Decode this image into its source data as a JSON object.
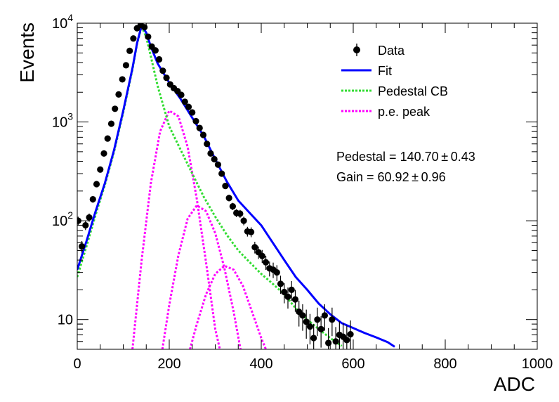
{
  "chart_data": {
    "type": "scatter",
    "xlabel": "ADC",
    "ylabel": "Events",
    "xlim": [
      0,
      1000
    ],
    "ylim": [
      5,
      10000
    ],
    "yscale": "log",
    "grid": false,
    "legend_position": "top-right",
    "x_tick_labels": [
      "0",
      "200",
      "400",
      "600",
      "800",
      "1000"
    ],
    "x_tick_values": [
      0,
      200,
      400,
      600,
      800,
      1000
    ],
    "y_tick_labels": [
      {
        "value": 10,
        "base": "10",
        "exp": ""
      },
      {
        "value": 100,
        "base": "10",
        "exp": "2"
      },
      {
        "value": 1000,
        "base": "10",
        "exp": "3"
      },
      {
        "value": 10000,
        "base": "10",
        "exp": "4"
      }
    ],
    "legend": [
      {
        "label": "Data",
        "style": "marker",
        "color": "#000000"
      },
      {
        "label": "Fit",
        "style": "solid",
        "color": "#0000ff"
      },
      {
        "label": "Pedestal CB",
        "style": "dotted",
        "color": "#33dd33"
      },
      {
        "label": "p.e. peak",
        "style": "dotted",
        "color": "#ff00ff"
      }
    ],
    "annotations": [
      "Pedestal = 140.70 ± 0.43",
      "Gain = 60.92 ± 0.96"
    ],
    "colors": {
      "data": "#000000",
      "fit": "#0000ff",
      "pedestal": "#33dd33",
      "pe": "#ff00ff"
    },
    "series": [
      {
        "name": "Data",
        "style": "points",
        "points": [
          [
            2,
            100
          ],
          [
            10,
            55
          ],
          [
            18,
            90
          ],
          [
            26,
            108
          ],
          [
            34,
            165
          ],
          [
            42,
            235
          ],
          [
            50,
            330
          ],
          [
            58,
            480
          ],
          [
            66,
            680
          ],
          [
            74,
            960
          ],
          [
            82,
            1360
          ],
          [
            90,
            1900
          ],
          [
            98,
            2700
          ],
          [
            106,
            3750
          ],
          [
            114,
            5250
          ],
          [
            122,
            7000
          ],
          [
            130,
            8900
          ],
          [
            138,
            9600
          ],
          [
            146,
            9100
          ],
          [
            154,
            7300
          ],
          [
            162,
            5800
          ],
          [
            170,
            5300
          ],
          [
            178,
            4300
          ],
          [
            186,
            3300
          ],
          [
            194,
            2800
          ],
          [
            202,
            2400
          ],
          [
            210,
            2200
          ],
          [
            218,
            2050
          ],
          [
            226,
            1880
          ],
          [
            234,
            1600
          ],
          [
            242,
            1420
          ],
          [
            250,
            1250
          ],
          [
            258,
            1020
          ],
          [
            266,
            870
          ],
          [
            274,
            740
          ],
          [
            282,
            600
          ],
          [
            290,
            480
          ],
          [
            298,
            420
          ],
          [
            306,
            370
          ],
          [
            314,
            300
          ],
          [
            322,
            225
          ],
          [
            330,
            170
          ],
          [
            338,
            140
          ],
          [
            346,
            120
          ],
          [
            354,
            118
          ],
          [
            362,
            100
          ],
          [
            370,
            78
          ],
          [
            378,
            77
          ],
          [
            386,
            54
          ],
          [
            394,
            48
          ],
          [
            402,
            44
          ],
          [
            410,
            38
          ],
          [
            418,
            33
          ],
          [
            426,
            32
          ],
          [
            434,
            30
          ],
          [
            442,
            23
          ],
          [
            450,
            19
          ],
          [
            458,
            17
          ],
          [
            466,
            20
          ],
          [
            474,
            16
          ],
          [
            482,
            12
          ],
          [
            490,
            11
          ],
          [
            498,
            9.5
          ],
          [
            506,
            8.5
          ],
          [
            514,
            6.5
          ],
          [
            522,
            10
          ],
          [
            530,
            8
          ],
          [
            538,
            11
          ],
          [
            546,
            5.8
          ],
          [
            554,
            10
          ],
          [
            562,
            6
          ],
          [
            570,
            7
          ],
          [
            578,
            6.7
          ],
          [
            586,
            6.2
          ],
          [
            594,
            7.1
          ]
        ],
        "errors": [
          10,
          7.4,
          9.5,
          10.4,
          12.8,
          15.3,
          18.2,
          21.9,
          26,
          31,
          36.9,
          43.6,
          52,
          61.2,
          72.5,
          83.7,
          94.3,
          98,
          95.4,
          85.4,
          76.2,
          72.8,
          65.6,
          57.4,
          52.9,
          49,
          46.9,
          45.3,
          43.4,
          40,
          37.7,
          35.4,
          31.9,
          29.5,
          27.2,
          24.5,
          21.9,
          20.5,
          19.2,
          17.3,
          15,
          13,
          11.8,
          11,
          10.9,
          10,
          8.8,
          8.8,
          7.3,
          6.9,
          6.6,
          6.2,
          5.7,
          5.7,
          5.5,
          4.8,
          4.4,
          4.1,
          4.5,
          4,
          3.5,
          3.3,
          3.1,
          2.9,
          2.5,
          3.2,
          2.8,
          3.3,
          2.4,
          3.2,
          2.4,
          2.6,
          2.6,
          2.5,
          2.7
        ]
      },
      {
        "name": "Fit",
        "style": "line",
        "points": [
          [
            0,
            32
          ],
          [
            20,
            62
          ],
          [
            40,
            125
          ],
          [
            60,
            240
          ],
          [
            80,
            520
          ],
          [
            100,
            1300
          ],
          [
            120,
            3500
          ],
          [
            130,
            6300
          ],
          [
            140,
            9500
          ],
          [
            150,
            8000
          ],
          [
            160,
            5800
          ],
          [
            175,
            3900
          ],
          [
            200,
            2500
          ],
          [
            225,
            1700
          ],
          [
            250,
            1100
          ],
          [
            275,
            720
          ],
          [
            300,
            420
          ],
          [
            325,
            250
          ],
          [
            350,
            160
          ],
          [
            375,
            120
          ],
          [
            400,
            90
          ],
          [
            425,
            60
          ],
          [
            450,
            40
          ],
          [
            475,
            27
          ],
          [
            500,
            20
          ],
          [
            525,
            14.5
          ],
          [
            550,
            11.3
          ],
          [
            575,
            9.2
          ],
          [
            600,
            8.2
          ],
          [
            625,
            7.3
          ],
          [
            650,
            6.6
          ],
          [
            675,
            5.9
          ],
          [
            690,
            5.3
          ]
        ]
      },
      {
        "name": "Pedestal CB",
        "style": "dotted",
        "points": [
          [
            0,
            27
          ],
          [
            20,
            55
          ],
          [
            40,
            115
          ],
          [
            60,
            230
          ],
          [
            80,
            500
          ],
          [
            100,
            1250
          ],
          [
            120,
            3400
          ],
          [
            130,
            6200
          ],
          [
            140,
            9300
          ],
          [
            150,
            7200
          ],
          [
            160,
            4600
          ],
          [
            175,
            2300
          ],
          [
            200,
            900
          ],
          [
            225,
            520
          ],
          [
            250,
            300
          ],
          [
            275,
            175
          ],
          [
            300,
            110
          ],
          [
            325,
            72
          ],
          [
            350,
            50
          ],
          [
            375,
            38
          ],
          [
            400,
            29
          ],
          [
            425,
            23
          ],
          [
            450,
            18
          ],
          [
            475,
            13
          ],
          [
            500,
            10
          ],
          [
            525,
            8
          ],
          [
            550,
            6.5
          ],
          [
            575,
            5.4
          ]
        ]
      },
      {
        "name": "p.e. peak",
        "style": "dotted",
        "points": [
          [
            120,
            5
          ],
          [
            140,
            40
          ],
          [
            160,
            240
          ],
          [
            180,
            800
          ],
          [
            200,
            1300
          ],
          [
            220,
            1140
          ],
          [
            240,
            560
          ],
          [
            260,
            165
          ],
          [
            280,
            38
          ],
          [
            300,
            8
          ],
          [
            310,
            5
          ]
        ]
      },
      {
        "name": "p.e. peak",
        "style": "dotted",
        "points": [
          [
            185,
            5
          ],
          [
            200,
            14
          ],
          [
            220,
            45
          ],
          [
            240,
            105
          ],
          [
            260,
            143
          ],
          [
            280,
            125
          ],
          [
            300,
            75
          ],
          [
            320,
            33
          ],
          [
            340,
            12
          ],
          [
            355,
            5
          ]
        ]
      },
      {
        "name": "p.e. peak",
        "style": "dotted",
        "points": [
          [
            245,
            5
          ],
          [
            260,
            9
          ],
          [
            280,
            18
          ],
          [
            300,
            29
          ],
          [
            320,
            35
          ],
          [
            340,
            32
          ],
          [
            360,
            22
          ],
          [
            380,
            12
          ],
          [
            400,
            6.5
          ],
          [
            410,
            5
          ]
        ]
      }
    ]
  }
}
